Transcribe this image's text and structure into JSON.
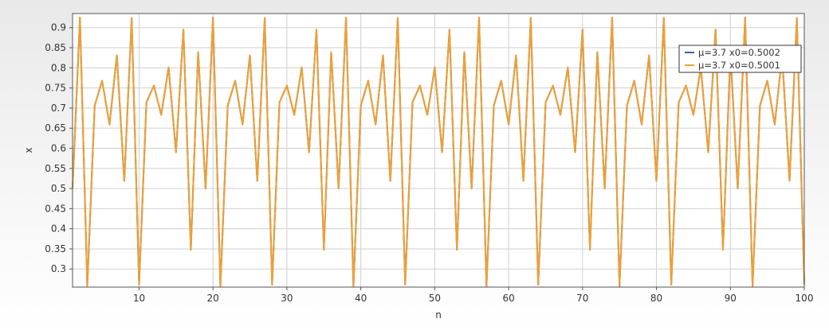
{
  "chart_data": {
    "type": "line",
    "title": "",
    "xlabel": "n",
    "ylabel": "x",
    "xlim": [
      1,
      100
    ],
    "ylim": [
      0.255,
      0.935
    ],
    "x_ticks": [
      10,
      20,
      30,
      40,
      50,
      60,
      70,
      80,
      90,
      100
    ],
    "y_ticks": [
      0.3,
      0.35,
      0.4,
      0.45,
      0.5,
      0.55,
      0.6,
      0.65,
      0.7,
      0.75,
      0.8,
      0.85,
      0.9
    ],
    "x_tick_labels": [
      "10",
      "20",
      "30",
      "40",
      "50",
      "60",
      "70",
      "80",
      "90",
      "100"
    ],
    "y_tick_labels": [
      "0.3",
      "0.35",
      "0.4",
      "0.45",
      "0.5",
      "0.55",
      "0.6",
      "0.65",
      "0.7",
      "0.75",
      "0.8",
      "0.85",
      "0.9"
    ],
    "grid": true,
    "legend_position": "top-right",
    "series": [
      {
        "name": "μ=3.7 x0=0.5002",
        "color": "#3f5fa8",
        "params": {
          "mu": 3.7,
          "x0": 0.5002
        },
        "values": [
          0.5002,
          0.925,
          0.257,
          0.706,
          0.768,
          0.659,
          0.831,
          0.519,
          0.924,
          0.261,
          0.714,
          0.756,
          0.683,
          0.801,
          0.59,
          0.895,
          0.348,
          0.839,
          0.5,
          0.925,
          0.257,
          0.706,
          0.768,
          0.659,
          0.831,
          0.519,
          0.924,
          0.261,
          0.714,
          0.756,
          0.683,
          0.801,
          0.59,
          0.895,
          0.348,
          0.839,
          0.5,
          0.925,
          0.257,
          0.706,
          0.768,
          0.659,
          0.831,
          0.519,
          0.924,
          0.261,
          0.714,
          0.756,
          0.683,
          0.801,
          0.59,
          0.895,
          0.348,
          0.839,
          0.5,
          0.925,
          0.257,
          0.706,
          0.768,
          0.659,
          0.831,
          0.519,
          0.924,
          0.261,
          0.714,
          0.756,
          0.683,
          0.801,
          0.59,
          0.895,
          0.348,
          0.839,
          0.5,
          0.925,
          0.257,
          0.706,
          0.768,
          0.659,
          0.831,
          0.519,
          0.924,
          0.261,
          0.714,
          0.756,
          0.683,
          0.801,
          0.59,
          0.895,
          0.348,
          0.839,
          0.5,
          0.925,
          0.257,
          0.706,
          0.768,
          0.659,
          0.831,
          0.519,
          0.924,
          0.261
        ]
      },
      {
        "name": "μ=3.7 x0=0.5001",
        "color": "#f0a030",
        "params": {
          "mu": 3.7,
          "x0": 0.5001
        },
        "values": [
          0.5001,
          0.925,
          0.257,
          0.706,
          0.768,
          0.659,
          0.831,
          0.519,
          0.924,
          0.261,
          0.714,
          0.756,
          0.683,
          0.801,
          0.59,
          0.895,
          0.348,
          0.839,
          0.5,
          0.925,
          0.257,
          0.706,
          0.768,
          0.659,
          0.831,
          0.519,
          0.924,
          0.261,
          0.714,
          0.756,
          0.683,
          0.801,
          0.59,
          0.895,
          0.348,
          0.839,
          0.5,
          0.925,
          0.257,
          0.706,
          0.768,
          0.659,
          0.831,
          0.519,
          0.924,
          0.261,
          0.714,
          0.756,
          0.683,
          0.801,
          0.59,
          0.895,
          0.348,
          0.839,
          0.5,
          0.925,
          0.257,
          0.706,
          0.768,
          0.659,
          0.831,
          0.519,
          0.924,
          0.261,
          0.714,
          0.756,
          0.683,
          0.801,
          0.59,
          0.895,
          0.348,
          0.839,
          0.5,
          0.925,
          0.257,
          0.706,
          0.768,
          0.659,
          0.831,
          0.519,
          0.924,
          0.261,
          0.714,
          0.756,
          0.683,
          0.801,
          0.59,
          0.895,
          0.348,
          0.839,
          0.5,
          0.925,
          0.257,
          0.706,
          0.768,
          0.659,
          0.831,
          0.519,
          0.924,
          0.261
        ]
      }
    ]
  }
}
